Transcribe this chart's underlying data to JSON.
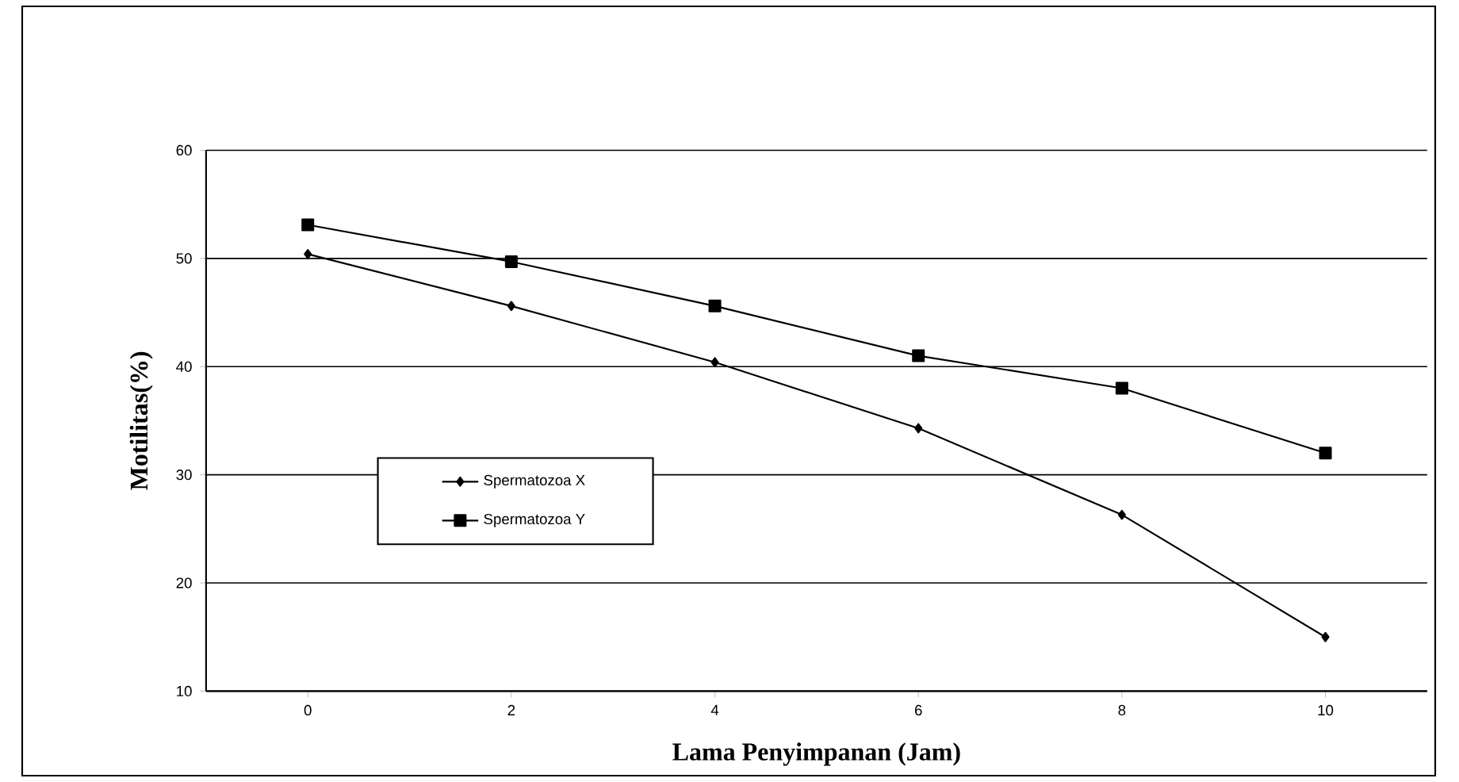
{
  "chart_data": {
    "type": "line",
    "xlabel": "Lama Penyimpanan (Jam)",
    "ylabel": "Motilitas(%)",
    "categories": [
      "0",
      "2",
      "4",
      "6",
      "8",
      "10"
    ],
    "series": [
      {
        "name": "Spermatozoa X",
        "color": "#000000",
        "marker": "diamond",
        "values": [
          50.4,
          45.6,
          40.4,
          34.3,
          26.3,
          15
        ]
      },
      {
        "name": "Spermatozoa Y",
        "color": "#000000",
        "marker": "square",
        "values": [
          53.1,
          49.7,
          45.6,
          41,
          38,
          32
        ]
      }
    ],
    "ylim": [
      10,
      60
    ],
    "yticks": [
      10,
      20,
      30,
      40,
      50,
      60
    ],
    "grid": "y",
    "legend": "left",
    "line_style": "solid"
  }
}
